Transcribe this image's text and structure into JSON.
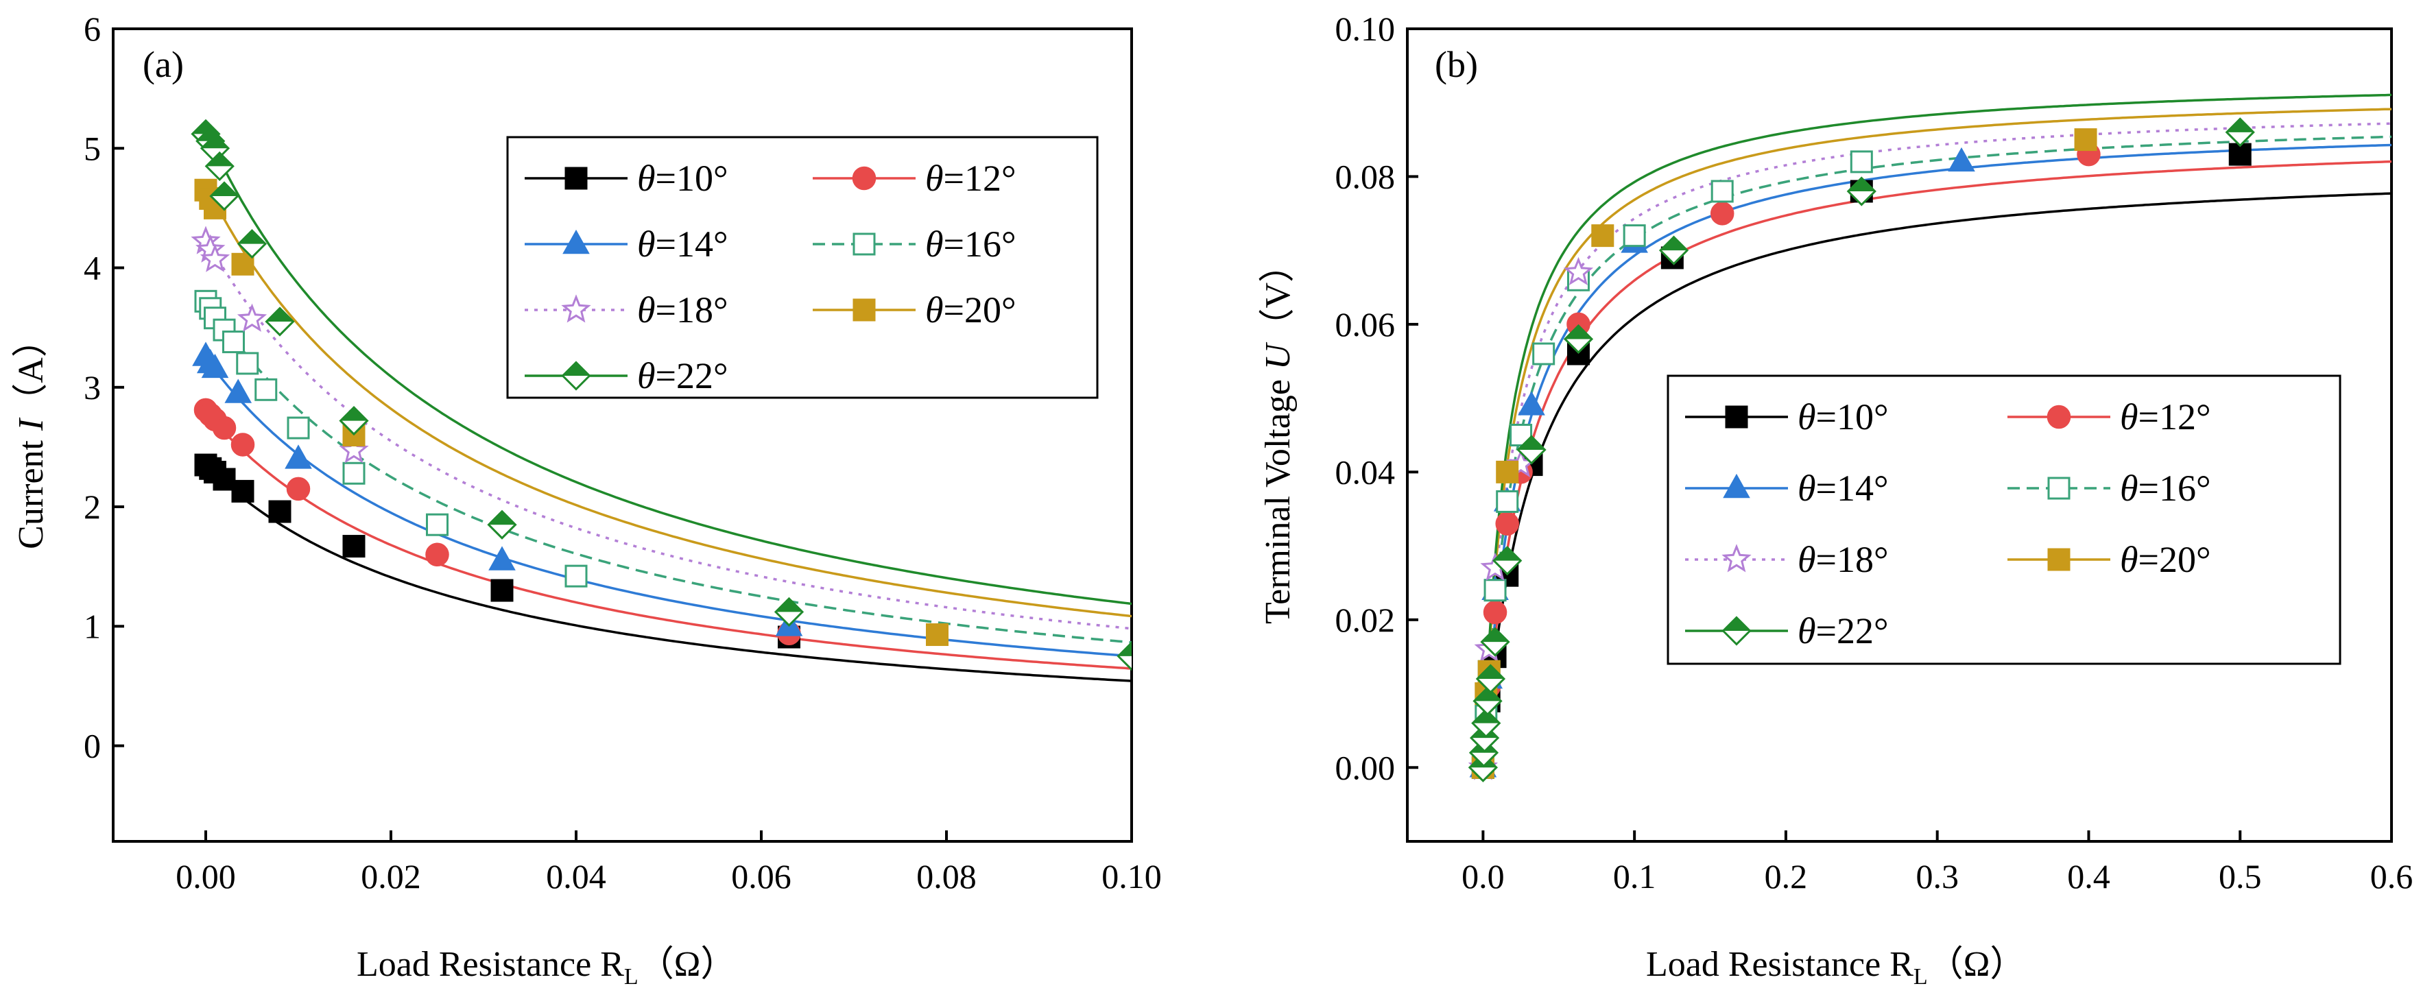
{
  "chart_data": [
    {
      "type": "line",
      "panel_label": "(a)",
      "xlabel": "Load Resistance R",
      "xlabel_sub": "L",
      "xlabel_unit": "（Ω）",
      "ylabel": "Current",
      "ylabel_var": "I",
      "ylabel_unit": "（A）",
      "xlim": [
        -0.01,
        0.1
      ],
      "ylim": [
        -0.8,
        6
      ],
      "xticks": [
        0.0,
        0.02,
        0.04,
        0.06,
        0.08,
        0.1
      ],
      "xtick_labels": [
        "0.00",
        "0.02",
        "0.04",
        "0.06",
        "0.08",
        "0.10"
      ],
      "yticks": [
        0,
        1,
        2,
        3,
        4,
        5,
        6
      ],
      "ytick_labels": [
        "0",
        "1",
        "2",
        "3",
        "4",
        "5",
        "6"
      ],
      "legend_position": "upper-right",
      "series": [
        {
          "name": "θ=10°",
          "sym": "θ",
          "eq": "=10°",
          "color": "#000000",
          "marker": "square",
          "fill": "solid",
          "dash": "solid",
          "ish": 2.35,
          "x": [
            0,
            0.0005,
            0.001,
            0.002,
            0.004,
            0.008,
            0.016,
            0.032,
            0.063
          ],
          "y": [
            2.35,
            2.32,
            2.29,
            2.23,
            2.13,
            1.96,
            1.67,
            1.3,
            0.91
          ]
        },
        {
          "name": "θ=12°",
          "sym": "θ",
          "eq": "=12°",
          "color": "#e84a4a",
          "marker": "circle",
          "fill": "solid",
          "dash": "solid",
          "ish": 2.8,
          "x": [
            0,
            0.0005,
            0.001,
            0.002,
            0.004,
            0.01,
            0.025,
            0.063
          ],
          "y": [
            2.81,
            2.77,
            2.73,
            2.66,
            2.52,
            2.15,
            1.6,
            0.94
          ]
        },
        {
          "name": "θ=14°",
          "sym": "θ",
          "eq": "=14°",
          "color": "#2e7bd6",
          "marker": "triangle",
          "fill": "solid",
          "dash": "solid",
          "ish": 3.25,
          "x": [
            0,
            0.0005,
            0.001,
            0.0035,
            0.01,
            0.032,
            0.063
          ],
          "y": [
            3.26,
            3.2,
            3.16,
            2.95,
            2.4,
            1.55,
            1.0
          ]
        },
        {
          "name": "θ=16°",
          "sym": "θ",
          "eq": "=16°",
          "color": "#3aa37a",
          "marker": "square",
          "fill": "open",
          "dash": "dash",
          "ish": 3.75,
          "x": [
            0,
            0.0005,
            0.001,
            0.002,
            0.003,
            0.0045,
            0.0065,
            0.01,
            0.016,
            0.025,
            0.04
          ],
          "y": [
            3.72,
            3.66,
            3.58,
            3.48,
            3.38,
            3.2,
            2.98,
            2.66,
            2.28,
            1.85,
            1.42
          ]
        },
        {
          "name": "θ=18°",
          "sym": "θ",
          "eq": "=18°",
          "color": "#b37fd6",
          "marker": "star",
          "fill": "open",
          "dash": "dot",
          "ish": 4.25,
          "x": [
            0,
            0.0005,
            0.001,
            0.005,
            0.016
          ],
          "y": [
            4.22,
            4.15,
            4.07,
            3.57,
            2.47
          ]
        },
        {
          "name": "θ=20°",
          "sym": "θ",
          "eq": "=20°",
          "color": "#c99a1a",
          "marker": "square",
          "fill": "half",
          "dash": "solid",
          "ish": 4.7,
          "x": [
            0,
            0.0005,
            0.001,
            0.004,
            0.016,
            0.079
          ],
          "y": [
            4.65,
            4.58,
            4.5,
            4.03,
            2.6,
            0.93
          ]
        },
        {
          "name": "θ=22°",
          "sym": "θ",
          "eq": "=22°",
          "color": "#1f8a2b",
          "marker": "diamond",
          "fill": "half",
          "dash": "solid",
          "ish": 5.15,
          "x": [
            0,
            0.0005,
            0.001,
            0.0015,
            0.002,
            0.005,
            0.008,
            0.016,
            0.032,
            0.063,
            0.1
          ],
          "y": [
            5.12,
            5.06,
            5.0,
            4.85,
            4.6,
            4.2,
            3.55,
            2.72,
            1.85,
            1.12,
            0.75
          ]
        }
      ]
    },
    {
      "type": "line",
      "panel_label": "(b)",
      "xlabel": "Load Resistance R",
      "xlabel_sub": "L",
      "xlabel_unit": "（Ω）",
      "ylabel": "Terminal Voltage",
      "ylabel_var": "U",
      "ylabel_unit": "（V）",
      "xlim": [
        -0.05,
        0.6
      ],
      "ylim": [
        -0.01,
        0.1
      ],
      "xticks": [
        0.0,
        0.1,
        0.2,
        0.3,
        0.4,
        0.5,
        0.6
      ],
      "xtick_labels": [
        "0.0",
        "0.1",
        "0.2",
        "0.3",
        "0.4",
        "0.5",
        "0.6"
      ],
      "yticks": [
        0.0,
        0.02,
        0.04,
        0.06,
        0.08,
        0.1
      ],
      "ytick_labels": [
        "0.00",
        "0.02",
        "0.04",
        "0.06",
        "0.08",
        "0.10"
      ],
      "legend_position": "center-right",
      "series": [
        {
          "name": "θ=10°",
          "sym": "θ",
          "eq": "=10°",
          "color": "#000000",
          "marker": "square",
          "fill": "solid",
          "dash": "solid",
          "i0": 2.35,
          "r": 0.035,
          "x": [
            0,
            0.004,
            0.008,
            0.016,
            0.032,
            0.063,
            0.125,
            0.25,
            0.5
          ],
          "y": [
            0.0,
            0.009,
            0.015,
            0.026,
            0.041,
            0.056,
            0.069,
            0.078,
            0.083
          ]
        },
        {
          "name": "θ=12°",
          "sym": "θ",
          "eq": "=12°",
          "color": "#e84a4a",
          "marker": "circle",
          "fill": "solid",
          "dash": "solid",
          "i0": 2.8,
          "r": 0.0308,
          "x": [
            0,
            0.004,
            0.008,
            0.016,
            0.025,
            0.063,
            0.158,
            0.4
          ],
          "y": [
            0.0,
            0.011,
            0.021,
            0.033,
            0.04,
            0.06,
            0.075,
            0.083
          ]
        },
        {
          "name": "θ=14°",
          "sym": "θ",
          "eq": "=14°",
          "color": "#2e7bd6",
          "marker": "triangle",
          "fill": "solid",
          "dash": "solid",
          "i0": 3.25,
          "r": 0.0271,
          "x": [
            0,
            0.004,
            0.008,
            0.016,
            0.032,
            0.1,
            0.316
          ],
          "y": [
            0.0,
            0.012,
            0.024,
            0.036,
            0.049,
            0.071,
            0.082
          ]
        },
        {
          "name": "θ=16°",
          "sym": "θ",
          "eq": "=16°",
          "color": "#3aa37a",
          "marker": "square",
          "fill": "open",
          "dash": "dash",
          "i0": 3.7,
          "r": 0.024,
          "x": [
            0,
            0.002,
            0.004,
            0.008,
            0.016,
            0.025,
            0.04,
            0.063,
            0.1,
            0.158,
            0.25
          ],
          "y": [
            0.0,
            0.007,
            0.013,
            0.024,
            0.036,
            0.045,
            0.056,
            0.066,
            0.072,
            0.078,
            0.082
          ]
        },
        {
          "name": "θ=18°",
          "sym": "θ",
          "eq": "=18°",
          "color": "#b37fd6",
          "marker": "star",
          "fill": "open",
          "dash": "dot",
          "i0": 4.2,
          "r": 0.0215,
          "x": [
            0,
            0.004,
            0.008,
            0.025,
            0.063
          ],
          "y": [
            0.0,
            0.016,
            0.027,
            0.041,
            0.067
          ]
        },
        {
          "name": "θ=20°",
          "sym": "θ",
          "eq": "=20°",
          "color": "#c99a1a",
          "marker": "square",
          "fill": "half",
          "dash": "solid",
          "i0": 4.65,
          "r": 0.0198,
          "x": [
            0,
            0.002,
            0.004,
            0.016,
            0.079,
            0.398
          ],
          "y": [
            0.0,
            0.01,
            0.013,
            0.04,
            0.072,
            0.085
          ]
        },
        {
          "name": "θ=22°",
          "sym": "θ",
          "eq": "=22°",
          "color": "#1f8a2b",
          "marker": "diamond",
          "fill": "half",
          "dash": "solid",
          "i0": 5.1,
          "r": 0.0184,
          "x": [
            0,
            0.0005,
            0.001,
            0.002,
            0.003,
            0.005,
            0.008,
            0.016,
            0.032,
            0.063,
            0.126,
            0.25,
            0.5
          ],
          "y": [
            0.0,
            0.002,
            0.004,
            0.006,
            0.009,
            0.012,
            0.017,
            0.028,
            0.043,
            0.058,
            0.07,
            0.078,
            0.086
          ]
        }
      ]
    }
  ]
}
